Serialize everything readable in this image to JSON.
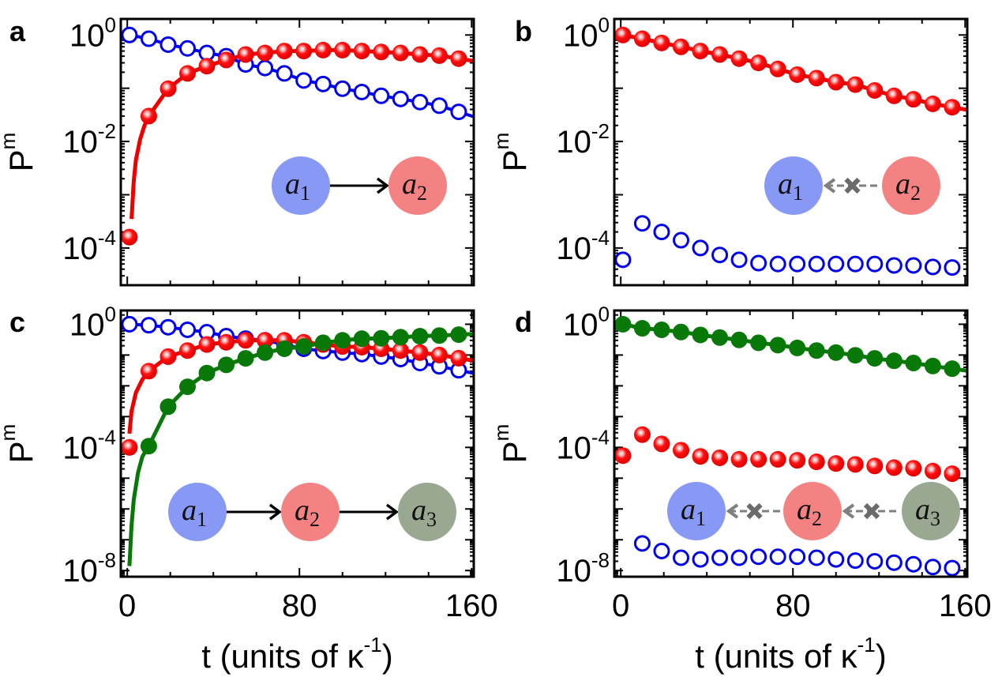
{
  "chart_data": [
    {
      "panel": "a",
      "type": "scatter+line",
      "xlabel": {
        "text": "",
        "exp": "",
        "close": ""
      },
      "ylabel": {
        "base": "P",
        "sub": "m"
      },
      "yscale": "log",
      "xlim": [
        -3,
        161
      ],
      "ylim": [
        2e-05,
        2
      ],
      "x_ticks": [
        {
          "value": 0,
          "label": ""
        },
        {
          "value": 80,
          "label": ""
        },
        {
          "value": 160,
          "label": ""
        }
      ],
      "y_ticks": [
        {
          "value": 1,
          "label": {
            "base": "10",
            "exp": "0"
          }
        },
        {
          "value": 0.01,
          "label": {
            "base": "10",
            "exp": "-2"
          }
        },
        {
          "value": 0.0001,
          "label": {
            "base": "10",
            "exp": "-4"
          }
        }
      ],
      "series": [
        {
          "color": "#0000ee",
          "marker": "open-circle",
          "line": true,
          "t": [
            1,
            10,
            19,
            28,
            37,
            46,
            55,
            64,
            73,
            82,
            91,
            100,
            109,
            118,
            127,
            136,
            145,
            154
          ],
          "values": [
            1.0,
            0.85,
            0.66,
            0.56,
            0.46,
            0.4,
            0.28,
            0.24,
            0.19,
            0.14,
            0.12,
            0.098,
            0.085,
            0.072,
            0.063,
            0.055,
            0.047,
            0.036
          ],
          "fit": []
        },
        {
          "color": "#ee0000",
          "marker": "shaded-ball",
          "line": true,
          "t": [
            1,
            10,
            19,
            28,
            37,
            46,
            55,
            64,
            73,
            82,
            91,
            100,
            109,
            118,
            127,
            136,
            145,
            154
          ],
          "values": [
            0.00016,
            0.03,
            0.098,
            0.19,
            0.26,
            0.34,
            0.43,
            0.46,
            0.5,
            0.5,
            0.52,
            0.52,
            0.5,
            0.48,
            0.46,
            0.43,
            0.41,
            0.36
          ],
          "fit": [
            [
              2,
              0.00035
            ],
            [
              3,
              0.0018
            ],
            [
              4,
              0.0045
            ],
            [
              6,
              0.011
            ],
            [
              8,
              0.02
            ],
            [
              10,
              0.03
            ]
          ]
        }
      ],
      "inset": {
        "nodes": [
          {
            "base": "a",
            "sub": "1",
            "color": "#8899f5"
          },
          {
            "base": "a",
            "sub": "2",
            "color": "#f58282"
          }
        ],
        "edge_style": "solid-arrow-right"
      }
    },
    {
      "panel": "b",
      "type": "scatter+line",
      "xlabel": {
        "text": "",
        "exp": "",
        "close": ""
      },
      "ylabel": {
        "base": "P",
        "sub": "m"
      },
      "yscale": "log",
      "xlim": [
        -3,
        161
      ],
      "ylim": [
        2e-05,
        2
      ],
      "x_ticks": [
        {
          "value": 0,
          "label": ""
        },
        {
          "value": 80,
          "label": ""
        },
        {
          "value": 160,
          "label": ""
        }
      ],
      "y_ticks": [
        {
          "value": 1,
          "label": {
            "base": "10",
            "exp": "0"
          }
        },
        {
          "value": 0.01,
          "label": {
            "base": "10",
            "exp": "-2"
          }
        },
        {
          "value": 0.0001,
          "label": {
            "base": "10",
            "exp": "-4"
          }
        }
      ],
      "series": [
        {
          "color": "#ee0000",
          "marker": "shaded-ball",
          "line": true,
          "t": [
            1,
            10,
            19,
            28,
            37,
            46,
            55,
            64,
            73,
            82,
            91,
            100,
            109,
            118,
            127,
            136,
            145,
            154
          ],
          "values": [
            1.0,
            0.85,
            0.71,
            0.6,
            0.5,
            0.43,
            0.36,
            0.3,
            0.23,
            0.18,
            0.155,
            0.13,
            0.117,
            0.091,
            0.072,
            0.062,
            0.051,
            0.044
          ],
          "fit": []
        },
        {
          "color": "#0000ee",
          "marker": "open-circle",
          "line": false,
          "t": [
            1,
            10,
            19,
            28,
            37,
            46,
            55,
            64,
            73,
            82,
            91,
            100,
            109,
            118,
            127,
            136,
            145,
            154
          ],
          "values": [
            6e-05,
            0.00029,
            0.0002,
            0.00014,
            0.0001,
            7.4e-05,
            6e-05,
            5.2e-05,
            5e-05,
            5e-05,
            5e-05,
            5e-05,
            5e-05,
            5e-05,
            4.7e-05,
            4.7e-05,
            4.4e-05,
            4.3e-05
          ],
          "fit": []
        }
      ],
      "inset": {
        "nodes": [
          {
            "base": "a",
            "sub": "1",
            "color": "#8899f5"
          },
          {
            "base": "a",
            "sub": "2",
            "color": "#f58282"
          }
        ],
        "edge_style": "blocked-dashed-arrow-left"
      }
    },
    {
      "panel": "c",
      "type": "scatter+line",
      "xlabel": {
        "text": "t (units of κ",
        "exp": "-1",
        "close": ")"
      },
      "ylabel": {
        "base": "P",
        "sub": "m"
      },
      "yscale": "log",
      "xlim": [
        -3,
        161
      ],
      "ylim": [
        6.3e-09,
        2.8
      ],
      "x_ticks": [
        {
          "value": 0,
          "label": "0"
        },
        {
          "value": 80,
          "label": "80"
        },
        {
          "value": 160,
          "label": "160"
        }
      ],
      "y_ticks": [
        {
          "value": 1,
          "label": {
            "base": "10",
            "exp": "0"
          }
        },
        {
          "value": 0.0001,
          "label": {
            "base": "10",
            "exp": "-4"
          }
        },
        {
          "value": 1e-08,
          "label": {
            "base": "10",
            "exp": "-8"
          }
        }
      ],
      "series": [
        {
          "color": "#0000ee",
          "marker": "open-circle",
          "line": true,
          "t": [
            1,
            10,
            19,
            28,
            37,
            46,
            55,
            64,
            73,
            82,
            91,
            100,
            109,
            118,
            127,
            136,
            145,
            154
          ],
          "values": [
            1.0,
            0.93,
            0.8,
            0.66,
            0.55,
            0.41,
            0.34,
            0.3,
            0.22,
            0.16,
            0.135,
            0.12,
            0.107,
            0.089,
            0.074,
            0.055,
            0.043,
            0.032
          ],
          "fit": []
        },
        {
          "color": "#ee0000",
          "marker": "shaded-ball",
          "line": true,
          "t": [
            1,
            10,
            19,
            28,
            37,
            46,
            55,
            64,
            73,
            82,
            91,
            100,
            109,
            118,
            127,
            136,
            145,
            154
          ],
          "values": [
            0.0001,
            0.03,
            0.089,
            0.14,
            0.22,
            0.26,
            0.3,
            0.3,
            0.3,
            0.26,
            0.22,
            0.19,
            0.18,
            0.16,
            0.14,
            0.12,
            0.1,
            0.079
          ],
          "fit": [
            [
              1,
              0.00028
            ],
            [
              2,
              0.0015
            ],
            [
              4,
              0.006
            ],
            [
              7,
              0.016
            ],
            [
              10,
              0.03
            ]
          ]
        },
        {
          "color": "#087808",
          "marker": "filled-circle",
          "line": true,
          "t": [
            10,
            19,
            28,
            37,
            46,
            55,
            64,
            73,
            82,
            91,
            100,
            109,
            118,
            127,
            136,
            145,
            154
          ],
          "values": [
            0.00011,
            0.0021,
            0.0093,
            0.026,
            0.048,
            0.078,
            0.12,
            0.16,
            0.19,
            0.25,
            0.3,
            0.34,
            0.35,
            0.38,
            0.41,
            0.43,
            0.46
          ],
          "fit": [
            [
              1,
              1.4e-08
            ],
            [
              2,
              3e-07
            ],
            [
              3,
              2e-06
            ],
            [
              5,
              1.5e-05
            ],
            [
              7,
              5e-05
            ],
            [
              10,
              0.00011
            ]
          ]
        }
      ],
      "inset": {
        "nodes": [
          {
            "base": "a",
            "sub": "1",
            "color": "#8899f5"
          },
          {
            "base": "a",
            "sub": "2",
            "color": "#f58282"
          },
          {
            "base": "a",
            "sub": "3",
            "color": "#9aa892"
          }
        ],
        "edge_style": "solid-arrow-right"
      }
    },
    {
      "panel": "d",
      "type": "scatter+line",
      "xlabel": {
        "text": "t (units of κ",
        "exp": "-1",
        "close": ")"
      },
      "ylabel": {
        "base": "P",
        "sub": "m"
      },
      "yscale": "log",
      "xlim": [
        -3,
        161
      ],
      "ylim": [
        6.3e-09,
        2.8
      ],
      "x_ticks": [
        {
          "value": 0,
          "label": "0"
        },
        {
          "value": 80,
          "label": "80"
        },
        {
          "value": 160,
          "label": "160"
        }
      ],
      "y_ticks": [
        {
          "value": 1,
          "label": {
            "base": "10",
            "exp": "0"
          }
        },
        {
          "value": 0.0001,
          "label": {
            "base": "10",
            "exp": "-4"
          }
        },
        {
          "value": 1e-08,
          "label": {
            "base": "10",
            "exp": "-8"
          }
        }
      ],
      "series": [
        {
          "color": "#087808",
          "marker": "filled-circle",
          "line": true,
          "t": [
            1,
            10,
            19,
            28,
            37,
            46,
            55,
            64,
            73,
            82,
            91,
            100,
            109,
            118,
            127,
            136,
            145,
            154
          ],
          "values": [
            1.0,
            0.74,
            0.66,
            0.56,
            0.45,
            0.37,
            0.31,
            0.25,
            0.21,
            0.17,
            0.14,
            0.12,
            0.098,
            0.078,
            0.065,
            0.055,
            0.044,
            0.036
          ],
          "fit": []
        },
        {
          "color": "#ee0000",
          "marker": "shaded-ball",
          "line": false,
          "t": [
            1,
            10,
            19,
            28,
            37,
            46,
            55,
            64,
            73,
            82,
            91,
            100,
            109,
            118,
            127,
            136,
            145,
            154
          ],
          "values": [
            5.4e-05,
            0.00026,
            0.00013,
            8.1e-05,
            5.1e-05,
            4.6e-05,
            4.1e-05,
            4.1e-05,
            4.1e-05,
            3.8e-05,
            3.4e-05,
            3e-05,
            2.8e-05,
            2.5e-05,
            2.2e-05,
            2.1e-05,
            1.7e-05,
            1.4e-05
          ],
          "fit": []
        },
        {
          "color": "#0000ee",
          "marker": "open-circle",
          "line": false,
          "t": [
            10,
            19,
            28,
            37,
            46,
            55,
            64,
            73,
            82,
            91,
            100,
            109,
            118,
            127,
            136,
            145,
            154
          ],
          "values": [
            7.6e-08,
            4.3e-08,
            2.6e-08,
            2.3e-08,
            2.6e-08,
            2.6e-08,
            2.8e-08,
            2.8e-08,
            2.8e-08,
            2.6e-08,
            2.3e-08,
            2.1e-08,
            2e-08,
            1.8e-08,
            1.6e-08,
            1.3e-08,
            1.2e-08
          ],
          "fit": []
        }
      ],
      "inset": {
        "nodes": [
          {
            "base": "a",
            "sub": "1",
            "color": "#8899f5"
          },
          {
            "base": "a",
            "sub": "2",
            "color": "#f58282"
          },
          {
            "base": "a",
            "sub": "3",
            "color": "#9aa892"
          }
        ],
        "edge_style": "blocked-dashed-arrow-left"
      }
    }
  ]
}
